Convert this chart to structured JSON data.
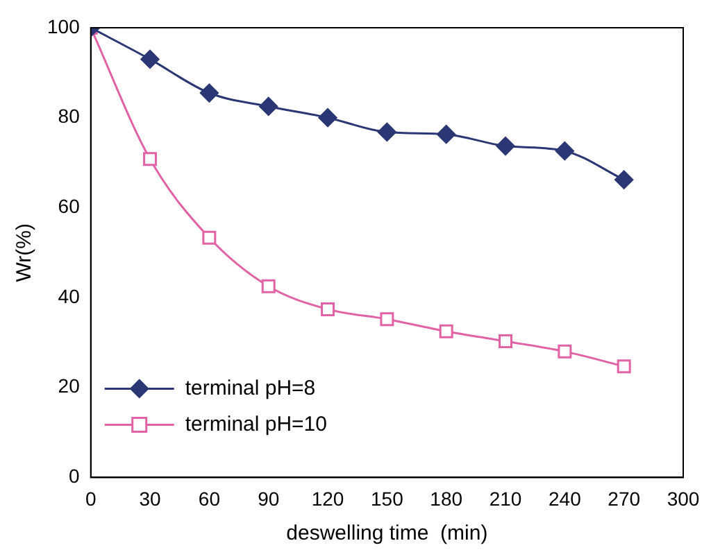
{
  "chart_data": {
    "type": "line",
    "xlabel": "deswelling time  (min)",
    "ylabel": "Wr(%)",
    "x": [
      0,
      30,
      60,
      90,
      120,
      150,
      180,
      210,
      240,
      270
    ],
    "xlim": [
      0,
      300
    ],
    "xticks": [
      0,
      30,
      60,
      90,
      120,
      150,
      180,
      210,
      240,
      270,
      300
    ],
    "ylim": [
      0,
      100
    ],
    "yticks": [
      0,
      20,
      40,
      60,
      80,
      100
    ],
    "grid": false,
    "legend": "bottom left",
    "series": [
      {
        "name": "terminal pH=8",
        "color": "#2b3674",
        "marker": "diamond",
        "values": [
          100,
          93,
          85.5,
          82.5,
          80,
          76.8,
          76.3,
          73.7,
          72.6,
          66.2
        ]
      },
      {
        "name": "terminal pH=10",
        "color": "#e262a6",
        "marker": "square",
        "values": [
          100,
          70.8,
          53.3,
          42.5,
          37.4,
          35.2,
          32.5,
          30.3,
          28,
          24.7
        ]
      }
    ]
  }
}
